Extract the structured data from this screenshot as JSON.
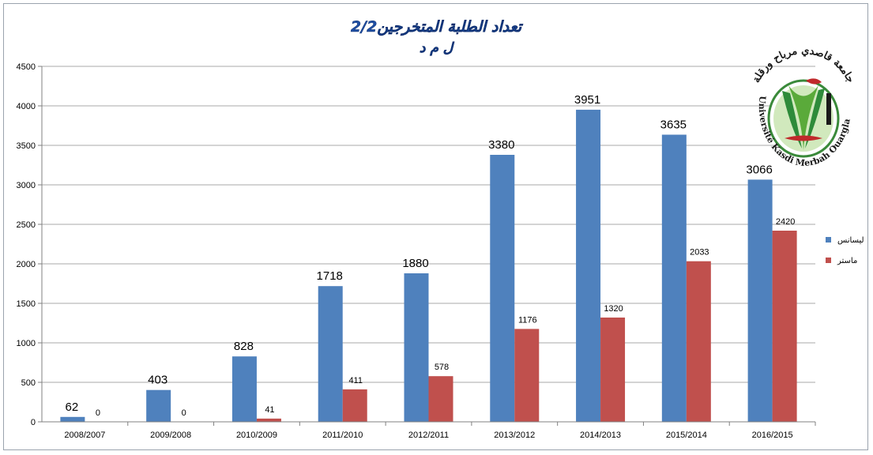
{
  "chart_data": {
    "type": "bar",
    "title": "2/2تعداد الطلبة المتخرجين",
    "subtitle": "ل م د",
    "categories": [
      "2008/2007",
      "2009/2008",
      "2010/2009",
      "2011/2010",
      "2012/2011",
      "2013/2012",
      "2014/2013",
      "2015/2014",
      "2016/2015"
    ],
    "series": [
      {
        "name": "ليسانس",
        "color": "#4f81bd",
        "values": [
          62,
          403,
          828,
          1718,
          1880,
          3380,
          3951,
          3635,
          3066
        ]
      },
      {
        "name": "ماستر",
        "color": "#c0504d",
        "values": [
          0,
          0,
          41,
          411,
          578,
          1176,
          1320,
          2033,
          2420
        ]
      }
    ],
    "ylim": [
      0,
      4500
    ],
    "yticks": [
      0,
      500,
      1000,
      1500,
      2000,
      2500,
      3000,
      3500,
      4000,
      4500
    ],
    "grid": true,
    "legend_position": "right",
    "xlabel": "",
    "ylabel": ""
  },
  "logo": {
    "arabic_text": "جامعة قاصدي مرباح ورقلة",
    "latin_text": "Université Kasdi Merbah Ouargla"
  }
}
